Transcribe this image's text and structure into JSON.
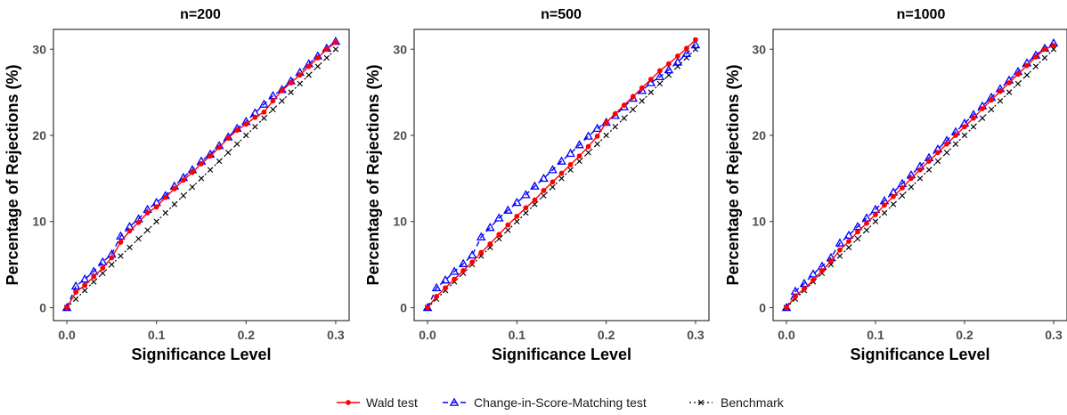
{
  "legend": {
    "items": [
      {
        "label": "Wald test",
        "color": "#FF0000",
        "marker": "circle",
        "line": "solid"
      },
      {
        "label": "Change-in-Score-Matching test",
        "color": "#0000FF",
        "marker": "triangle",
        "line": "dashed"
      },
      {
        "label": "Benchmark",
        "color": "#000000",
        "marker": "cross",
        "line": "dotted"
      }
    ]
  },
  "chart_data": [
    {
      "type": "line",
      "title": "n=200",
      "xlabel": "Significance Level",
      "ylabel": "Percentage of Rejections (%)",
      "xlim": [
        -0.015,
        0.315
      ],
      "ylim": [
        -1.5,
        32.3
      ],
      "xticks": [
        0.0,
        0.1,
        0.2,
        0.3
      ],
      "xtick_labels": [
        "0.0",
        "0.1",
        "0.2",
        "0.3"
      ],
      "yticks": [
        0,
        10,
        20,
        30
      ],
      "ytick_labels": [
        "0",
        "10",
        "20",
        "30"
      ],
      "grid": false,
      "x": [
        0.0,
        0.01,
        0.02,
        0.03,
        0.04,
        0.05,
        0.06,
        0.07,
        0.08,
        0.09,
        0.1,
        0.11,
        0.12,
        0.13,
        0.14,
        0.15,
        0.16,
        0.17,
        0.18,
        0.19,
        0.2,
        0.21,
        0.22,
        0.23,
        0.24,
        0.25,
        0.26,
        0.27,
        0.28,
        0.29,
        0.3
      ],
      "series": [
        {
          "name": "Wald test",
          "values": [
            0.0,
            1.8,
            2.6,
            3.6,
            4.6,
            5.8,
            7.6,
            8.9,
            9.9,
            11.0,
            11.7,
            12.8,
            13.8,
            14.8,
            15.7,
            16.7,
            17.6,
            18.6,
            19.7,
            20.6,
            21.3,
            22.1,
            22.7,
            24.0,
            25.2,
            26.1,
            27.0,
            28.0,
            29.0,
            30.0,
            30.8
          ]
        },
        {
          "name": "Change-in-Score-Matching test",
          "values": [
            0.0,
            2.5,
            3.3,
            4.2,
            5.3,
            6.2,
            8.3,
            9.4,
            10.3,
            11.4,
            12.2,
            13.0,
            14.1,
            15.1,
            16.0,
            17.0,
            17.8,
            18.8,
            19.8,
            20.8,
            21.6,
            22.6,
            23.6,
            24.6,
            25.3,
            26.3,
            27.3,
            28.3,
            29.2,
            30.1,
            30.9
          ]
        },
        {
          "name": "Benchmark",
          "values": [
            0,
            1,
            2,
            3,
            4,
            5,
            6,
            7,
            8,
            9,
            10,
            11,
            12,
            13,
            14,
            15,
            16,
            17,
            18,
            19,
            20,
            21,
            22,
            23,
            24,
            25,
            26,
            27,
            28,
            29,
            30
          ]
        }
      ]
    },
    {
      "type": "line",
      "title": "n=500",
      "xlabel": "Significance Level",
      "ylabel": "Percentage of Rejections (%)",
      "xlim": [
        -0.015,
        0.315
      ],
      "ylim": [
        -1.5,
        32.3
      ],
      "xticks": [
        0.0,
        0.1,
        0.2,
        0.3
      ],
      "xtick_labels": [
        "0.0",
        "0.1",
        "0.2",
        "0.3"
      ],
      "yticks": [
        0,
        10,
        20,
        30
      ],
      "ytick_labels": [
        "0",
        "10",
        "20",
        "30"
      ],
      "grid": false,
      "x": [
        0.0,
        0.01,
        0.02,
        0.03,
        0.04,
        0.05,
        0.06,
        0.07,
        0.08,
        0.09,
        0.1,
        0.11,
        0.12,
        0.13,
        0.14,
        0.15,
        0.16,
        0.17,
        0.18,
        0.19,
        0.2,
        0.21,
        0.22,
        0.23,
        0.24,
        0.25,
        0.26,
        0.27,
        0.28,
        0.29,
        0.3
      ],
      "series": [
        {
          "name": "Wald test",
          "values": [
            0.0,
            1.3,
            2.3,
            3.3,
            4.3,
            5.3,
            6.4,
            7.4,
            8.5,
            9.6,
            10.6,
            11.6,
            12.5,
            13.6,
            14.6,
            15.6,
            16.6,
            17.6,
            18.7,
            19.9,
            21.5,
            22.5,
            23.5,
            24.5,
            25.5,
            26.5,
            27.5,
            28.3,
            29.2,
            30.1,
            31.1
          ]
        },
        {
          "name": "Change-in-Score-Matching test",
          "values": [
            0.0,
            2.3,
            3.2,
            4.2,
            5.1,
            6.1,
            8.2,
            9.3,
            10.4,
            11.3,
            12.2,
            13.1,
            14.1,
            15.0,
            16.0,
            17.0,
            17.9,
            18.9,
            19.9,
            20.8,
            21.5,
            22.3,
            23.3,
            24.3,
            25.2,
            26.1,
            26.8,
            27.6,
            28.5,
            29.5,
            30.5
          ]
        },
        {
          "name": "Benchmark",
          "values": [
            0,
            1,
            2,
            3,
            4,
            5,
            6,
            7,
            8,
            9,
            10,
            11,
            12,
            13,
            14,
            15,
            16,
            17,
            18,
            19,
            20,
            21,
            22,
            23,
            24,
            25,
            26,
            27,
            28,
            29,
            30
          ]
        }
      ]
    },
    {
      "type": "line",
      "title": "n=1000",
      "xlabel": "Significance Level",
      "ylabel": "Percentage of Rejections (%)",
      "xlim": [
        -0.015,
        0.315
      ],
      "ylim": [
        -1.5,
        32.3
      ],
      "xticks": [
        0.0,
        0.1,
        0.2,
        0.3
      ],
      "xtick_labels": [
        "0.0",
        "0.1",
        "0.2",
        "0.3"
      ],
      "yticks": [
        0,
        10,
        20,
        30
      ],
      "ytick_labels": [
        "0",
        "10",
        "20",
        "30"
      ],
      "grid": false,
      "x": [
        0.0,
        0.01,
        0.02,
        0.03,
        0.04,
        0.05,
        0.06,
        0.07,
        0.08,
        0.09,
        0.1,
        0.11,
        0.12,
        0.13,
        0.14,
        0.15,
        0.16,
        0.17,
        0.18,
        0.19,
        0.2,
        0.21,
        0.22,
        0.23,
        0.24,
        0.25,
        0.26,
        0.27,
        0.28,
        0.29,
        0.3
      ],
      "series": [
        {
          "name": "Wald test",
          "values": [
            0.0,
            1.3,
            2.2,
            3.2,
            4.3,
            5.4,
            6.7,
            7.7,
            8.8,
            9.8,
            10.8,
            11.9,
            12.9,
            13.9,
            15.0,
            16.0,
            17.0,
            18.0,
            19.0,
            20.0,
            21.0,
            22.0,
            23.1,
            24.1,
            25.1,
            26.1,
            27.1,
            28.1,
            29.1,
            30.0,
            30.4
          ]
        },
        {
          "name": "Change-in-Score-Matching test",
          "values": [
            0.0,
            1.9,
            2.8,
            3.9,
            4.8,
            5.8,
            7.5,
            8.4,
            9.4,
            10.4,
            11.4,
            12.4,
            13.4,
            14.4,
            15.4,
            16.4,
            17.4,
            18.4,
            19.4,
            20.4,
            21.4,
            22.4,
            23.4,
            24.4,
            25.4,
            26.4,
            27.4,
            28.4,
            29.3,
            30.1,
            30.7
          ]
        },
        {
          "name": "Benchmark",
          "values": [
            0,
            1,
            2,
            3,
            4,
            5,
            6,
            7,
            8,
            9,
            10,
            11,
            12,
            13,
            14,
            15,
            16,
            17,
            18,
            19,
            20,
            21,
            22,
            23,
            24,
            25,
            26,
            27,
            28,
            29,
            30
          ]
        }
      ]
    }
  ]
}
